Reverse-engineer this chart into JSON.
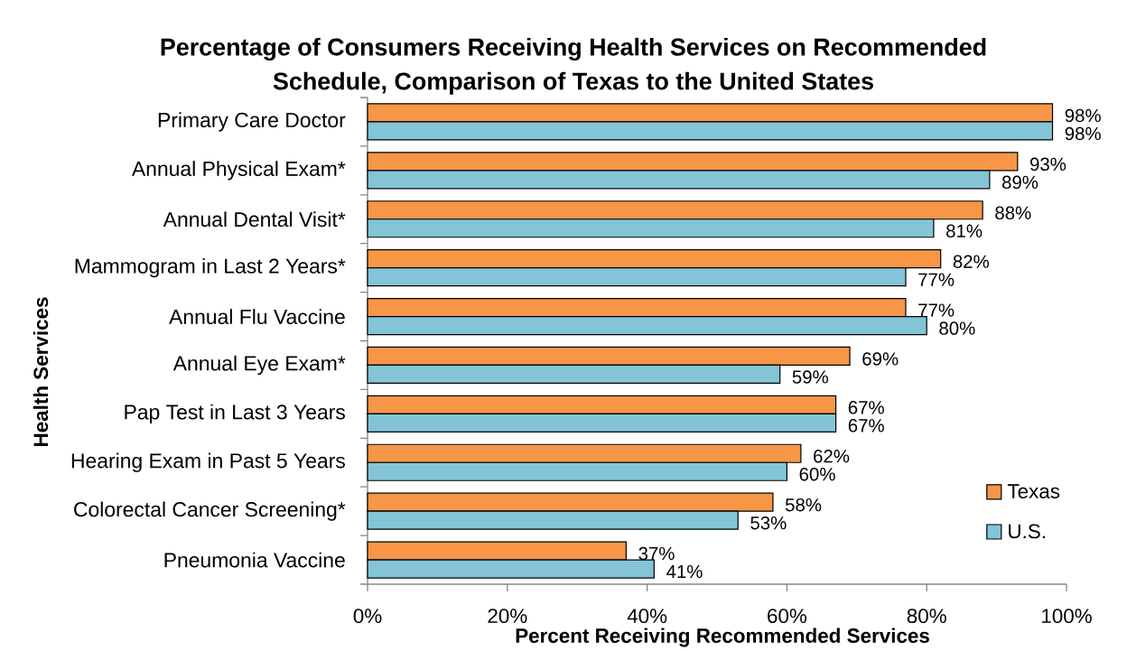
{
  "chart_data": {
    "type": "bar",
    "orientation": "horizontal",
    "title": "Percentage of Consumers Receiving Health Services on Recommended Schedule, Comparison of Texas to the United States",
    "xlabel": "Percent Receiving Recommended Services",
    "ylabel": "Health Services",
    "categories": [
      "Primary Care Doctor",
      "Annual Physical Exam*",
      "Annual Dental Visit*",
      "Mammogram in Last 2 Years*",
      "Annual Flu Vaccine",
      "Annual Eye Exam*",
      "Pap Test in Last 3 Years",
      "Hearing Exam in Past 5 Years",
      "Colorectal Cancer Screening*",
      "Pneumonia Vaccine"
    ],
    "series": [
      {
        "name": "Texas",
        "color": "#f79646",
        "values": [
          98,
          93,
          88,
          82,
          77,
          69,
          67,
          62,
          58,
          37
        ],
        "value_labels": [
          "98%",
          "93%",
          "88%",
          "82%",
          "77%",
          "69%",
          "67%",
          "62%",
          "58%",
          "37%"
        ]
      },
      {
        "name": "U.S.",
        "color": "#83c4d7",
        "values": [
          98,
          89,
          81,
          77,
          80,
          59,
          67,
          60,
          53,
          41
        ],
        "value_labels": [
          "98%",
          "89%",
          "81%",
          "77%",
          "80%",
          "59%",
          "67%",
          "60%",
          "53%",
          "41%"
        ]
      }
    ],
    "xlim": [
      0,
      100
    ],
    "xticks": [
      {
        "value": 0,
        "label": "0%"
      },
      {
        "value": 20,
        "label": "20%"
      },
      {
        "value": 40,
        "label": "40%"
      },
      {
        "value": 60,
        "label": "60%"
      },
      {
        "value": 80,
        "label": "80%"
      },
      {
        "value": 100,
        "label": "100%"
      }
    ],
    "legend": "bottom right"
  }
}
